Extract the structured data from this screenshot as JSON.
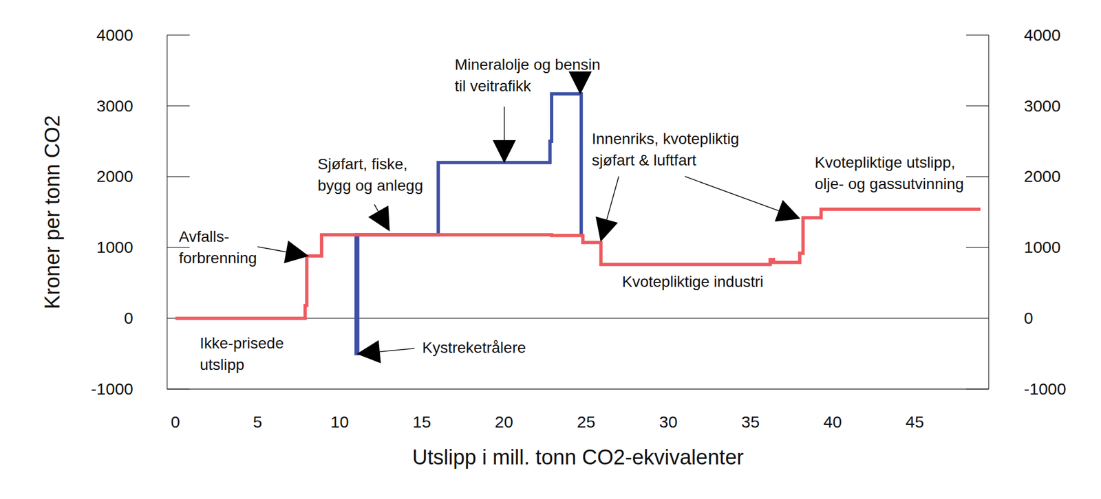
{
  "chart_data": {
    "type": "line",
    "line_style": "step",
    "x_label": "Utslipp i mill. tonn CO2-ekvivalenter",
    "y_label": "Kroner per tonn CO2",
    "xlim": [
      -0.5,
      49.5
    ],
    "xticks": [
      0,
      5,
      10,
      15,
      20,
      25,
      30,
      35,
      40,
      45
    ],
    "ylim": [
      -1000,
      4000
    ],
    "yticks": [
      -1000,
      0,
      1000,
      2000,
      3000,
      4000
    ],
    "y2lim": [
      -1000,
      4000
    ],
    "y2ticks": [
      -1000,
      0,
      1000,
      2000,
      3000,
      4000
    ],
    "grid": false,
    "series": [
      {
        "color": "#3f51a5",
        "x": [
          10.95,
          11.0,
          11.1,
          16.0,
          22.8,
          22.9,
          24.7
        ],
        "values": [
          1180,
          -500,
          1180,
          2200,
          2500,
          3170,
          1180
        ]
      },
      {
        "color": "#ee5a5f",
        "x": [
          0,
          7.9,
          8.0,
          8.9,
          22.9,
          24.8,
          25.9,
          36.2,
          36.4,
          38.0,
          38.2,
          39.3,
          49.0
        ],
        "values": [
          0,
          180,
          880,
          1180,
          1170,
          1070,
          760,
          830,
          790,
          920,
          1420,
          1540,
          1540
        ]
      }
    ],
    "annotations": [
      {
        "text": "Avfalls-\nforbrenning"
      },
      {
        "text": "Ikke-prisede\nutslipp"
      },
      {
        "text": "Kystreketrålere"
      },
      {
        "text": "Sjøfart, fiske,\nbygg og anlegg"
      },
      {
        "text": "Mineralolje og bensin\ntil veitrafikk"
      },
      {
        "text": "Innenriks, kvotepliktig\nsjøfart & luftfart"
      },
      {
        "text": "Kvotepliktige utslipp,\nolje- og gassutvinning"
      },
      {
        "text": "Kvotepliktige industri"
      }
    ]
  }
}
